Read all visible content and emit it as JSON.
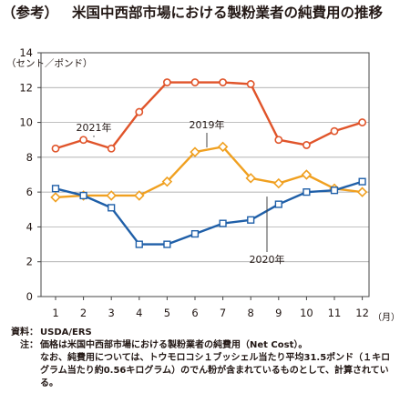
{
  "title_prefix": "（参考）",
  "title_main": "米国中西部市場における製粉業者の純費用の推移",
  "notes": {
    "source_key": "資料：",
    "source_value": "USDA/ERS",
    "note_key": "注：",
    "note_value": "価格は米国中西部市場における製粉業者の純費用（Net Cost）。",
    "note_cont": "なお、純費用については、トウモロコシ１ブッシェル当たり平均31.5ポンド（１キログラム当たり約0.56キログラム）のでん粉が含まれているものとして、計算されている。"
  },
  "chart_data": {
    "type": "line",
    "ylabel": "（セント／ポンド）",
    "xlabel": "（月）",
    "ylim": [
      0,
      14
    ],
    "yticks": [
      "0",
      "2",
      "4",
      "6",
      "8",
      "10",
      "12",
      "14"
    ],
    "categories": [
      "1",
      "2",
      "3",
      "4",
      "5",
      "6",
      "7",
      "8",
      "9",
      "10",
      "11",
      "12"
    ],
    "grid": "horizontal",
    "series": [
      {
        "name": "2021年",
        "color": "#e0542a",
        "marker": "circle",
        "values": [
          8.5,
          9.0,
          8.5,
          10.6,
          12.3,
          12.3,
          12.3,
          12.2,
          9.0,
          8.7,
          9.5,
          10.0
        ]
      },
      {
        "name": "2019年",
        "color": "#f0a020",
        "marker": "diamond",
        "values": [
          5.7,
          5.8,
          5.8,
          5.8,
          6.6,
          8.3,
          8.6,
          6.8,
          6.5,
          7.0,
          6.2,
          6.0
        ]
      },
      {
        "name": "2020年",
        "color": "#1f5fa8",
        "marker": "square",
        "values": [
          6.2,
          5.8,
          5.1,
          3.0,
          3.0,
          3.6,
          4.2,
          4.4,
          5.3,
          6.0,
          6.1,
          6.6
        ]
      }
    ]
  }
}
